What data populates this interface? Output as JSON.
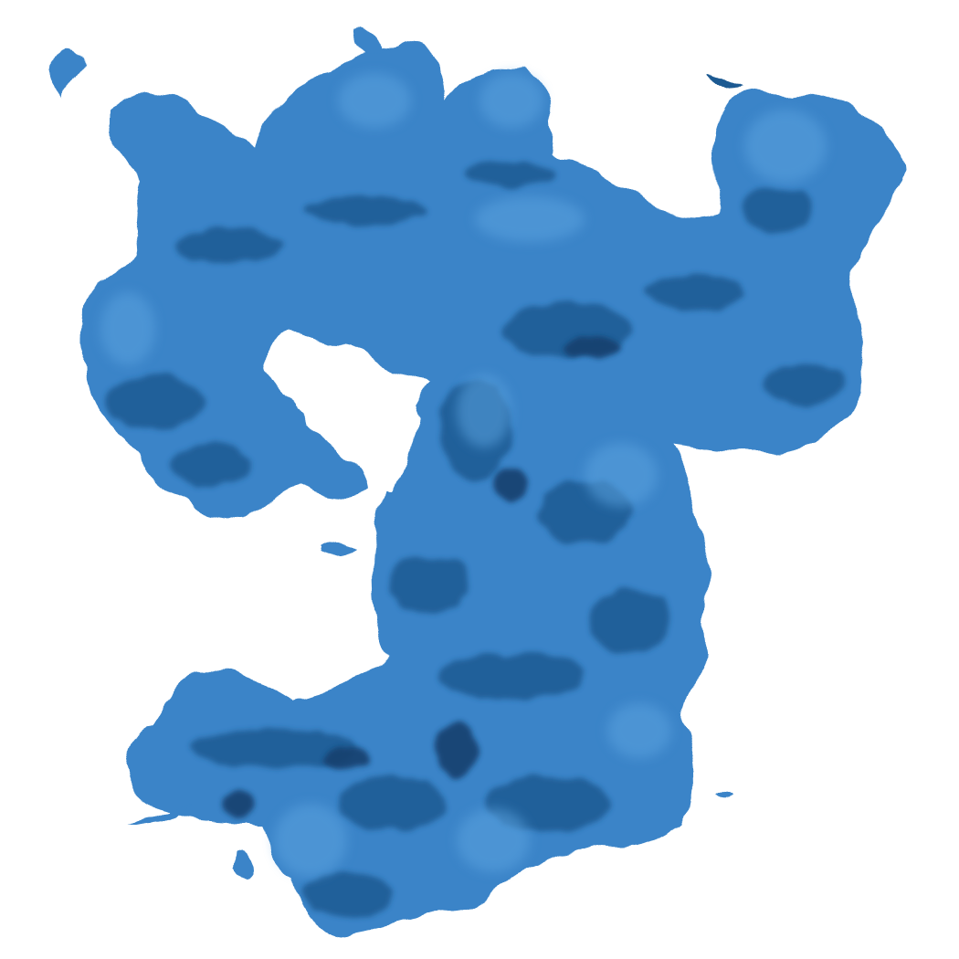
{
  "viewer": {
    "background_color": "#ffffff",
    "surface_color": "#3a84c8",
    "surface_shadow_color": "#1f5a92",
    "surface_deep_shadow_color": "#14416e",
    "surface_highlight_color": "#5aa2df",
    "subject": "density-isosurface"
  }
}
